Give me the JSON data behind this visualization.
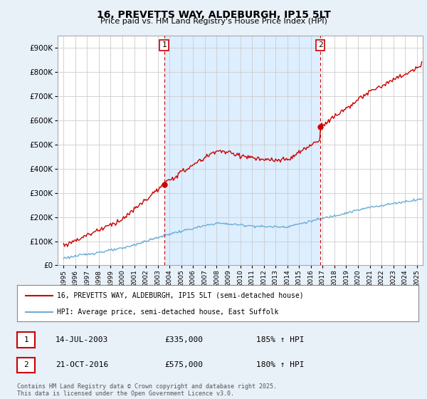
{
  "title": "16, PREVETTS WAY, ALDEBURGH, IP15 5LT",
  "subtitle": "Price paid vs. HM Land Registry's House Price Index (HPI)",
  "legend_line1": "16, PREVETTS WAY, ALDEBURGH, IP15 5LT (semi-detached house)",
  "legend_line2": "HPI: Average price, semi-detached house, East Suffolk",
  "transaction1_date_label": "14-JUL-2003",
  "transaction1_price": 335000,
  "transaction1_price_label": "£335,000",
  "transaction1_hpi": "185% ↑ HPI",
  "transaction1_year": 2003.54,
  "transaction2_date_label": "21-OCT-2016",
  "transaction2_price": 575000,
  "transaction2_price_label": "£575,000",
  "transaction2_hpi": "180% ↑ HPI",
  "transaction2_year": 2016.8,
  "footer": "Contains HM Land Registry data © Crown copyright and database right 2025.\nThis data is licensed under the Open Government Licence v3.0.",
  "ylim": [
    0,
    950000
  ],
  "yticks": [
    0,
    100000,
    200000,
    300000,
    400000,
    500000,
    600000,
    700000,
    800000,
    900000
  ],
  "xlim_start": 1994.5,
  "xlim_end": 2025.5,
  "red_color": "#cc0000",
  "blue_color": "#6baed6",
  "shade_color": "#ddeeff",
  "background_color": "#e8f0f8",
  "plot_bg_color": "#ffffff",
  "grid_color": "#cccccc",
  "legend_border_color": "#888888"
}
